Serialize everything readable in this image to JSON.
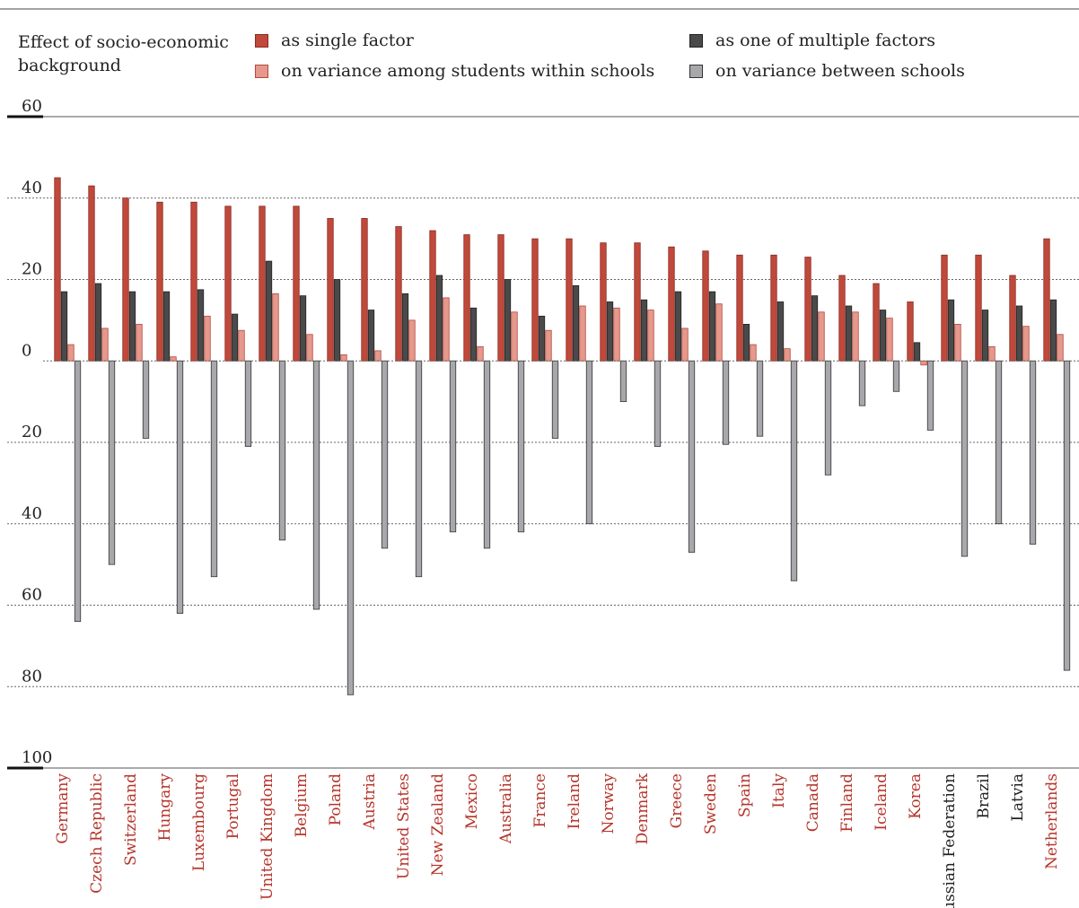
{
  "legend": {
    "title": "Effect of socio-economic background",
    "items": [
      {
        "label": "as single factor",
        "color": "#c0493b",
        "stroke": "#8a2b20"
      },
      {
        "label": "on variance among students within schools",
        "color": "#e5998c",
        "stroke": "#b4473a"
      },
      {
        "label": "as one of multiple factors",
        "color": "#4a4a4a",
        "stroke": "#222222"
      },
      {
        "label": "on variance between schools",
        "color": "#a8a8ac",
        "stroke": "#333333"
      }
    ]
  },
  "colors": {
    "highlight_country": "#b5342a",
    "plain_country": "#222222"
  },
  "chart_data": {
    "type": "bar",
    "yaxis": {
      "min": -100,
      "max": 60,
      "ticks": [
        {
          "value": 60,
          "label": "60"
        },
        {
          "value": 40,
          "label": "40"
        },
        {
          "value": 20,
          "label": "20"
        },
        {
          "value": 0,
          "label": "0"
        },
        {
          "value": -20,
          "label": "20"
        },
        {
          "value": -40,
          "label": "40"
        },
        {
          "value": -60,
          "label": "60"
        },
        {
          "value": -80,
          "label": "80"
        },
        {
          "value": -100,
          "label": "100"
        }
      ],
      "grid": true
    },
    "categories": [
      "Germany",
      "Czech Republic",
      "Switzerland",
      "Hungary",
      "Luxembourg",
      "Portugal",
      "United Kingdom",
      "Belgium",
      "Poland",
      "Austria",
      "United States",
      "New Zealand",
      "Mexico",
      "Australia",
      "France",
      "Ireland",
      "Norway",
      "Denmark",
      "Greece",
      "Sweden",
      "Spain",
      "Italy",
      "Canada",
      "Finland",
      "Iceland",
      "Korea",
      "Russian Federation",
      "Brazil",
      "Latvia",
      "Netherlands"
    ],
    "highlighted": [
      true,
      true,
      true,
      true,
      true,
      true,
      true,
      true,
      true,
      true,
      true,
      true,
      true,
      true,
      true,
      true,
      true,
      true,
      true,
      true,
      true,
      true,
      true,
      true,
      true,
      true,
      false,
      false,
      false,
      true
    ],
    "series": [
      {
        "name": "as single factor",
        "values": [
          45,
          43,
          40,
          39,
          39,
          38,
          38,
          38,
          35,
          35,
          33,
          32,
          31,
          31,
          30,
          30,
          29,
          29,
          28,
          27,
          26,
          26,
          25.5,
          21,
          19,
          14.5,
          26,
          26,
          21,
          30
        ]
      },
      {
        "name": "as one of multiple factors",
        "values": [
          17,
          19,
          17,
          17,
          17.5,
          11.5,
          24.5,
          16,
          20,
          12.5,
          16.5,
          21,
          13,
          20,
          11,
          18.5,
          14.5,
          15,
          17,
          17,
          9,
          14.5,
          16,
          13.5,
          12.5,
          4.5,
          15,
          12.5,
          13.5,
          15
        ]
      },
      {
        "name": "on variance among students within schools",
        "values": [
          4,
          8,
          9,
          1,
          11,
          7.5,
          16.5,
          6.5,
          1.5,
          2.5,
          10,
          15.5,
          3.5,
          12,
          7.5,
          13.5,
          13,
          12.5,
          8,
          14,
          4,
          3,
          12,
          12,
          10.5,
          -1,
          9,
          3.5,
          8.5,
          6.5
        ]
      },
      {
        "name": "on variance between schools",
        "values": [
          -64,
          -50,
          -19,
          -62,
          -53,
          -21,
          -44,
          -61,
          -82,
          -46,
          -53,
          -42,
          -46,
          -42,
          -19,
          -40,
          -10,
          -21,
          -47,
          -20.5,
          -18.5,
          -54,
          -28,
          -11,
          -7.5,
          -17,
          -48,
          -40,
          -45,
          -76
        ]
      }
    ]
  }
}
